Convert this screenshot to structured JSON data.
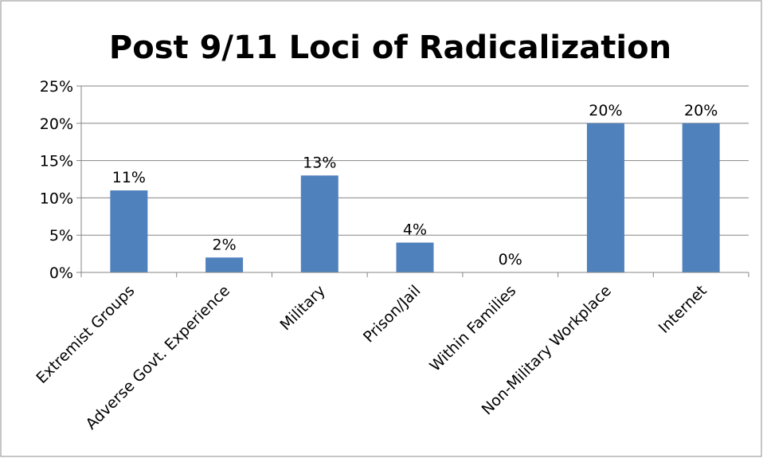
{
  "chart_data": {
    "type": "bar",
    "title": "Post 9/11 Loci of Radicalization",
    "xlabel": "",
    "ylabel": "",
    "categories": [
      "Extremist Groups",
      "Adverse Govt. Experience",
      "Military",
      "Prison/Jail",
      "Within Families",
      "Non-Military Workplace",
      "Internet"
    ],
    "values": [
      11,
      2,
      13,
      4,
      0,
      20,
      20
    ],
    "data_labels": [
      "11%",
      "2%",
      "13%",
      "4%",
      "0%",
      "20%",
      "20%"
    ],
    "ylim": [
      0,
      25
    ],
    "yticks": [
      0,
      5,
      10,
      15,
      20,
      25
    ],
    "ytick_labels": [
      "0%",
      "5%",
      "10%",
      "15%",
      "20%",
      "25%"
    ],
    "grid": true,
    "legend": "none",
    "bar_color": "#4F81BD",
    "grid_color": "#868686"
  }
}
